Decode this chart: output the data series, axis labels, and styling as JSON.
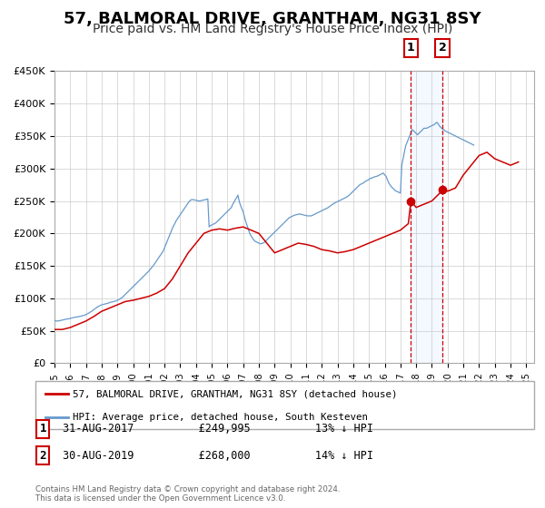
{
  "title": "57, BALMORAL DRIVE, GRANTHAM, NG31 8SY",
  "subtitle": "Price paid vs. HM Land Registry's House Price Index (HPI)",
  "title_fontsize": 13,
  "subtitle_fontsize": 10,
  "background_color": "#ffffff",
  "plot_bg_color": "#ffffff",
  "grid_color": "#cccccc",
  "hpi_color": "#6699cc",
  "price_color": "#cc0000",
  "ylim": [
    0,
    450000
  ],
  "yticks": [
    0,
    50000,
    100000,
    150000,
    200000,
    250000,
    300000,
    350000,
    400000,
    450000
  ],
  "ytick_labels": [
    "£0",
    "£50K",
    "£100K",
    "£150K",
    "£200K",
    "£250K",
    "£300K",
    "£350K",
    "£400K",
    "£450K"
  ],
  "xlim_start": 1995.0,
  "xlim_end": 2025.5,
  "xticks": [
    1995,
    1996,
    1997,
    1998,
    1999,
    2000,
    2001,
    2002,
    2003,
    2004,
    2005,
    2006,
    2007,
    2008,
    2009,
    2010,
    2011,
    2012,
    2013,
    2014,
    2015,
    2016,
    2017,
    2018,
    2019,
    2020,
    2021,
    2022,
    2023,
    2024,
    2025
  ],
  "sale1_x": 2017.667,
  "sale1_y": 249995,
  "sale1_label": "1",
  "sale1_date": "31-AUG-2017",
  "sale1_price": "£249,995",
  "sale1_hpi": "13% ↓ HPI",
  "sale2_x": 2019.667,
  "sale2_y": 268000,
  "sale2_label": "2",
  "sale2_date": "30-AUG-2019",
  "sale2_price": "£268,000",
  "sale2_hpi": "14% ↓ HPI",
  "legend_label_price": "57, BALMORAL DRIVE, GRANTHAM, NG31 8SY (detached house)",
  "legend_label_hpi": "HPI: Average price, detached house, South Kesteven",
  "footer1": "Contains HM Land Registry data © Crown copyright and database right 2024.",
  "footer2": "This data is licensed under the Open Government Licence v3.0.",
  "hpi_data_y": [
    65000,
    65500,
    64800,
    65200,
    65500,
    66000,
    66500,
    67000,
    67500,
    68000,
    68200,
    68500,
    69000,
    69500,
    70000,
    70500,
    71000,
    71200,
    71500,
    72000,
    72500,
    73000,
    73500,
    74000,
    75000,
    76000,
    77000,
    78500,
    79500,
    81000,
    82500,
    84000,
    85500,
    87000,
    88000,
    89000,
    90000,
    90500,
    91000,
    91500,
    92000,
    92500,
    93500,
    94000,
    94500,
    95000,
    95500,
    96000,
    97000,
    98000,
    99000,
    100500,
    102000,
    104000,
    106000,
    108000,
    110000,
    112000,
    114000,
    116000,
    118000,
    120000,
    122000,
    124000,
    126000,
    128000,
    130000,
    132000,
    134000,
    136000,
    138000,
    140000,
    142000,
    144500,
    147000,
    149500,
    152000,
    155000,
    158000,
    161000,
    164000,
    167000,
    170000,
    173000,
    178000,
    183000,
    188000,
    193000,
    198000,
    203000,
    208000,
    212000,
    216000,
    220000,
    223000,
    226000,
    229000,
    232000,
    235000,
    238000,
    241000,
    244000,
    247000,
    249500,
    251500,
    252000,
    252000,
    251500,
    251000,
    250500,
    250000,
    250000,
    250500,
    251000,
    251500,
    252000,
    252500,
    253000,
    210000,
    212000,
    213000,
    214000,
    215000,
    216000,
    218000,
    220000,
    222000,
    224000,
    226000,
    228000,
    230000,
    232000,
    234000,
    236000,
    238000,
    240000,
    245000,
    248000,
    252000,
    255000,
    259000,
    249000,
    243000,
    238000,
    233000,
    225000,
    218000,
    212000,
    206000,
    200000,
    196000,
    193000,
    190000,
    188000,
    187000,
    186000,
    185000,
    184000,
    184500,
    185000,
    186000,
    188000,
    190000,
    192000,
    194000,
    196000,
    198000,
    200000,
    202000,
    204000,
    206000,
    208000,
    210000,
    212000,
    214000,
    216000,
    218000,
    220000,
    222000,
    224000,
    225000,
    226000,
    227000,
    228000,
    228500,
    229000,
    229500,
    230000,
    229500,
    229000,
    228500,
    228000,
    227500,
    227000,
    227000,
    227000,
    227000,
    228000,
    229000,
    230000,
    231000,
    232000,
    233000,
    234000,
    235000,
    236000,
    237000,
    238000,
    239000,
    240000,
    241500,
    243000,
    244500,
    246000,
    247000,
    248000,
    249000,
    250000,
    251000,
    252000,
    253000,
    254000,
    255000,
    256000,
    257500,
    259000,
    261000,
    263000,
    265000,
    267000,
    269000,
    271000,
    273000,
    275000,
    276000,
    277000,
    278000,
    280000,
    281000,
    282000,
    283000,
    285000,
    285000,
    286000,
    287000,
    287500,
    288000,
    289000,
    290000,
    291000,
    292000,
    293000,
    290000,
    288000,
    283000,
    278000,
    275000,
    272000,
    270000,
    268000,
    266000,
    265000,
    264000,
    263000,
    262000,
    305000,
    315000,
    325000,
    335000,
    340000,
    345000,
    350000,
    355000,
    360000,
    358000,
    356000,
    354000,
    352000,
    354000,
    356000,
    358000,
    360000,
    362000,
    362000,
    362000,
    363000,
    364000,
    365000,
    366000,
    367000,
    368000,
    370000,
    371000,
    368000,
    365000,
    363000,
    361000,
    360000,
    358000,
    357000,
    356000,
    355000,
    354000,
    353000,
    352000,
    351000,
    350000,
    349000,
    348000,
    347000,
    346000,
    345000,
    344000,
    343000,
    342000,
    341000,
    340000,
    339000,
    338000,
    337000,
    336000
  ],
  "hpi_start_year": 1995.0,
  "hpi_month_step": 0.08333333333,
  "price_data_x": [
    1995.0,
    1995.5,
    1996.0,
    1996.5,
    1997.0,
    1997.5,
    1998.0,
    1998.5,
    1999.0,
    1999.5,
    2000.0,
    2000.5,
    2001.0,
    2001.5,
    2002.0,
    2002.5,
    2003.0,
    2003.5,
    2004.0,
    2004.5,
    2005.0,
    2005.5,
    2006.0,
    2006.5,
    2007.0,
    2007.5,
    2008.0,
    2008.5,
    2009.0,
    2009.5,
    2010.0,
    2010.5,
    2011.0,
    2011.5,
    2012.0,
    2012.5,
    2013.0,
    2013.5,
    2014.0,
    2014.5,
    2015.0,
    2015.5,
    2016.0,
    2016.5,
    2017.0,
    2017.5,
    2017.667,
    2018.0,
    2018.5,
    2019.0,
    2019.5,
    2019.667,
    2020.0,
    2020.5,
    2021.0,
    2021.5,
    2022.0,
    2022.5,
    2023.0,
    2023.5,
    2024.0,
    2024.5
  ],
  "price_data_y": [
    52000,
    52000,
    55000,
    60000,
    65000,
    72000,
    80000,
    85000,
    90000,
    95000,
    97000,
    100000,
    103000,
    108000,
    115000,
    130000,
    150000,
    170000,
    185000,
    200000,
    205000,
    207000,
    205000,
    208000,
    210000,
    205000,
    200000,
    185000,
    170000,
    175000,
    180000,
    185000,
    183000,
    180000,
    175000,
    173000,
    170000,
    172000,
    175000,
    180000,
    185000,
    190000,
    195000,
    200000,
    205000,
    215000,
    249995,
    240000,
    245000,
    250000,
    262000,
    268000,
    265000,
    270000,
    290000,
    305000,
    320000,
    325000,
    315000,
    310000,
    305000,
    310000
  ]
}
